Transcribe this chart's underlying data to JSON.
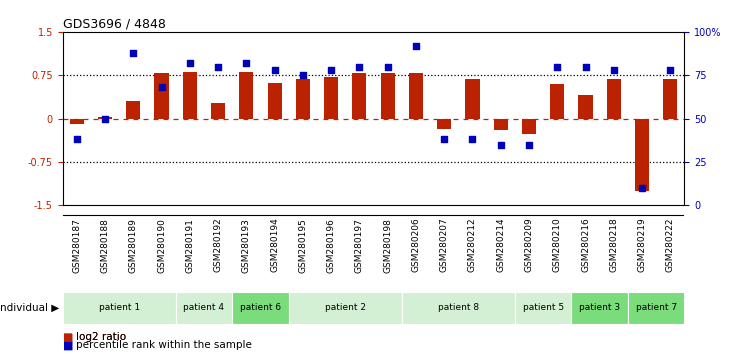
{
  "title": "GDS3696 / 4848",
  "samples": [
    "GSM280187",
    "GSM280188",
    "GSM280189",
    "GSM280190",
    "GSM280191",
    "GSM280192",
    "GSM280193",
    "GSM280194",
    "GSM280195",
    "GSM280196",
    "GSM280197",
    "GSM280198",
    "GSM280206",
    "GSM280207",
    "GSM280212",
    "GSM280214",
    "GSM280209",
    "GSM280210",
    "GSM280216",
    "GSM280218",
    "GSM280219",
    "GSM280222"
  ],
  "log2_ratio": [
    -0.1,
    0.02,
    0.3,
    0.78,
    0.8,
    0.27,
    0.8,
    0.62,
    0.68,
    0.72,
    0.78,
    0.78,
    0.78,
    -0.18,
    0.68,
    -0.2,
    -0.27,
    0.6,
    0.4,
    0.68,
    -1.25,
    0.68
  ],
  "percentile": [
    38,
    50,
    88,
    68,
    82,
    80,
    82,
    78,
    75,
    78,
    80,
    80,
    92,
    38,
    38,
    35,
    35,
    80,
    80,
    78,
    10,
    78
  ],
  "patients": [
    {
      "label": "patient 1",
      "start": 0,
      "end": 4,
      "color": "#d4f0d4"
    },
    {
      "label": "patient 4",
      "start": 4,
      "end": 6,
      "color": "#d4f0d4"
    },
    {
      "label": "patient 6",
      "start": 6,
      "end": 8,
      "color": "#7adc7a"
    },
    {
      "label": "patient 2",
      "start": 8,
      "end": 12,
      "color": "#d4f0d4"
    },
    {
      "label": "patient 8",
      "start": 12,
      "end": 16,
      "color": "#d4f0d4"
    },
    {
      "label": "patient 5",
      "start": 16,
      "end": 18,
      "color": "#d4f0d4"
    },
    {
      "label": "patient 3",
      "start": 18,
      "end": 20,
      "color": "#7adc7a"
    },
    {
      "label": "patient 7",
      "start": 20,
      "end": 22,
      "color": "#7adc7a"
    }
  ],
  "bar_color": "#bb2200",
  "dot_color": "#0000bb",
  "ylim_left": [
    -1.5,
    1.5
  ],
  "ylim_right": [
    0,
    100
  ],
  "yticks_left": [
    -1.5,
    -0.75,
    0.0,
    0.75,
    1.5
  ],
  "yticks_right": [
    0,
    25,
    50,
    75,
    100
  ],
  "legend_items": [
    {
      "label": "log2 ratio",
      "color": "#bb2200"
    },
    {
      "label": "percentile rank within the sample",
      "color": "#0000bb"
    }
  ]
}
